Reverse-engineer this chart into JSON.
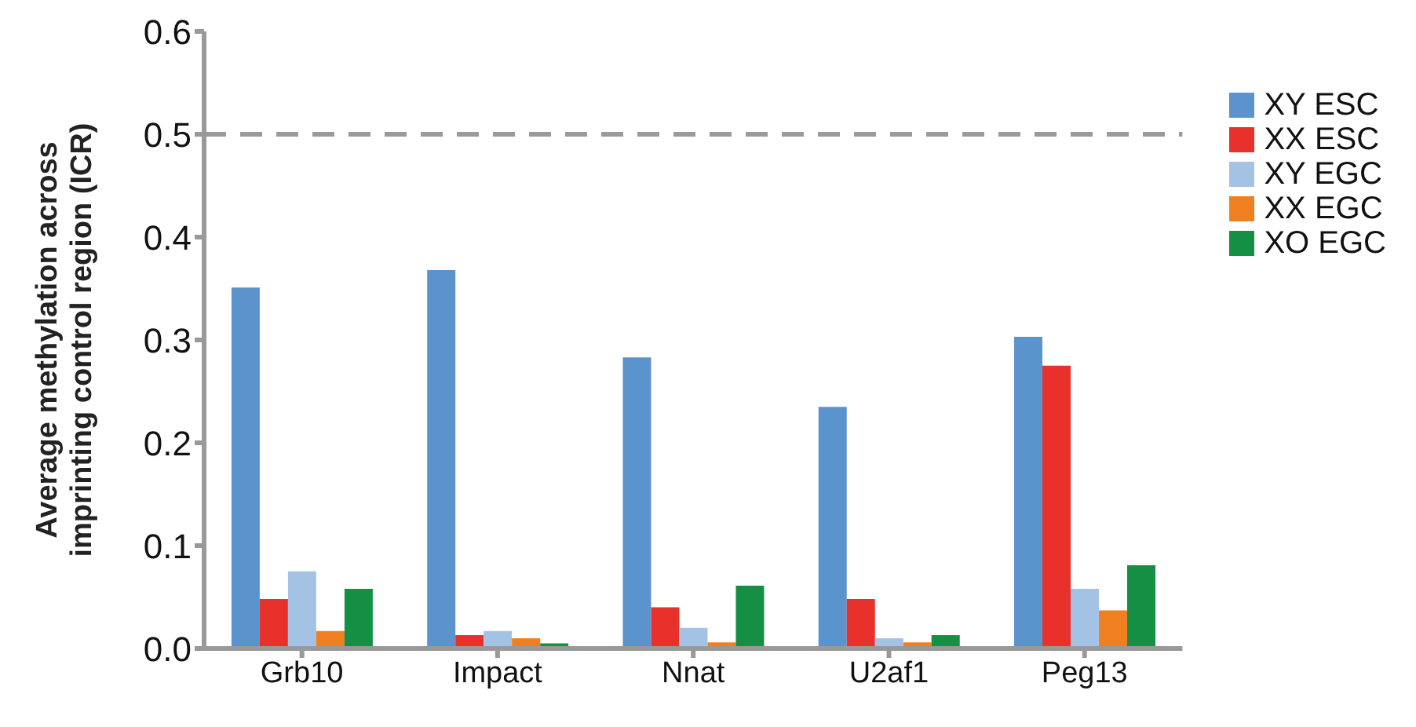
{
  "chart_data": {
    "type": "bar",
    "ylabel": "Average methylation across imprinting control region (ICR)",
    "categories": [
      "Grb10",
      "Impact",
      "Nnat",
      "U2af1",
      "Peg13"
    ],
    "series": [
      {
        "name": "XY ESC",
        "color": "#5b93cc",
        "values": [
          0.351,
          0.368,
          0.283,
          0.235,
          0.303
        ]
      },
      {
        "name": "XX ESC",
        "color": "#e8312a",
        "values": [
          0.048,
          0.013,
          0.04,
          0.048,
          0.275
        ]
      },
      {
        "name": "XY EGC",
        "color": "#a4c2e3",
        "values": [
          0.075,
          0.017,
          0.02,
          0.01,
          0.058
        ]
      },
      {
        "name": "XX EGC",
        "color": "#f07f20",
        "values": [
          0.017,
          0.01,
          0.006,
          0.006,
          0.037
        ]
      },
      {
        "name": "XO EGC",
        "color": "#148f44",
        "values": [
          0.058,
          0.005,
          0.061,
          0.013,
          0.081
        ]
      }
    ],
    "ylim": [
      0,
      0.6
    ],
    "yticks": [
      {
        "value": 0,
        "label": "0.0"
      },
      {
        "value": 0.1,
        "label": "0.1"
      },
      {
        "value": 0.2,
        "label": "0.2"
      },
      {
        "value": 0.3,
        "label": "0.3"
      },
      {
        "value": 0.4,
        "label": "0.4"
      },
      {
        "value": 0.5,
        "label": "0.5"
      },
      {
        "value": 0.6,
        "label": "0.6"
      }
    ],
    "ref_lines": [
      {
        "axis": "y",
        "value": 0.5,
        "color": "#9a9a9a",
        "line_style": "dashed"
      }
    ],
    "grid": false,
    "legend": "top right"
  }
}
